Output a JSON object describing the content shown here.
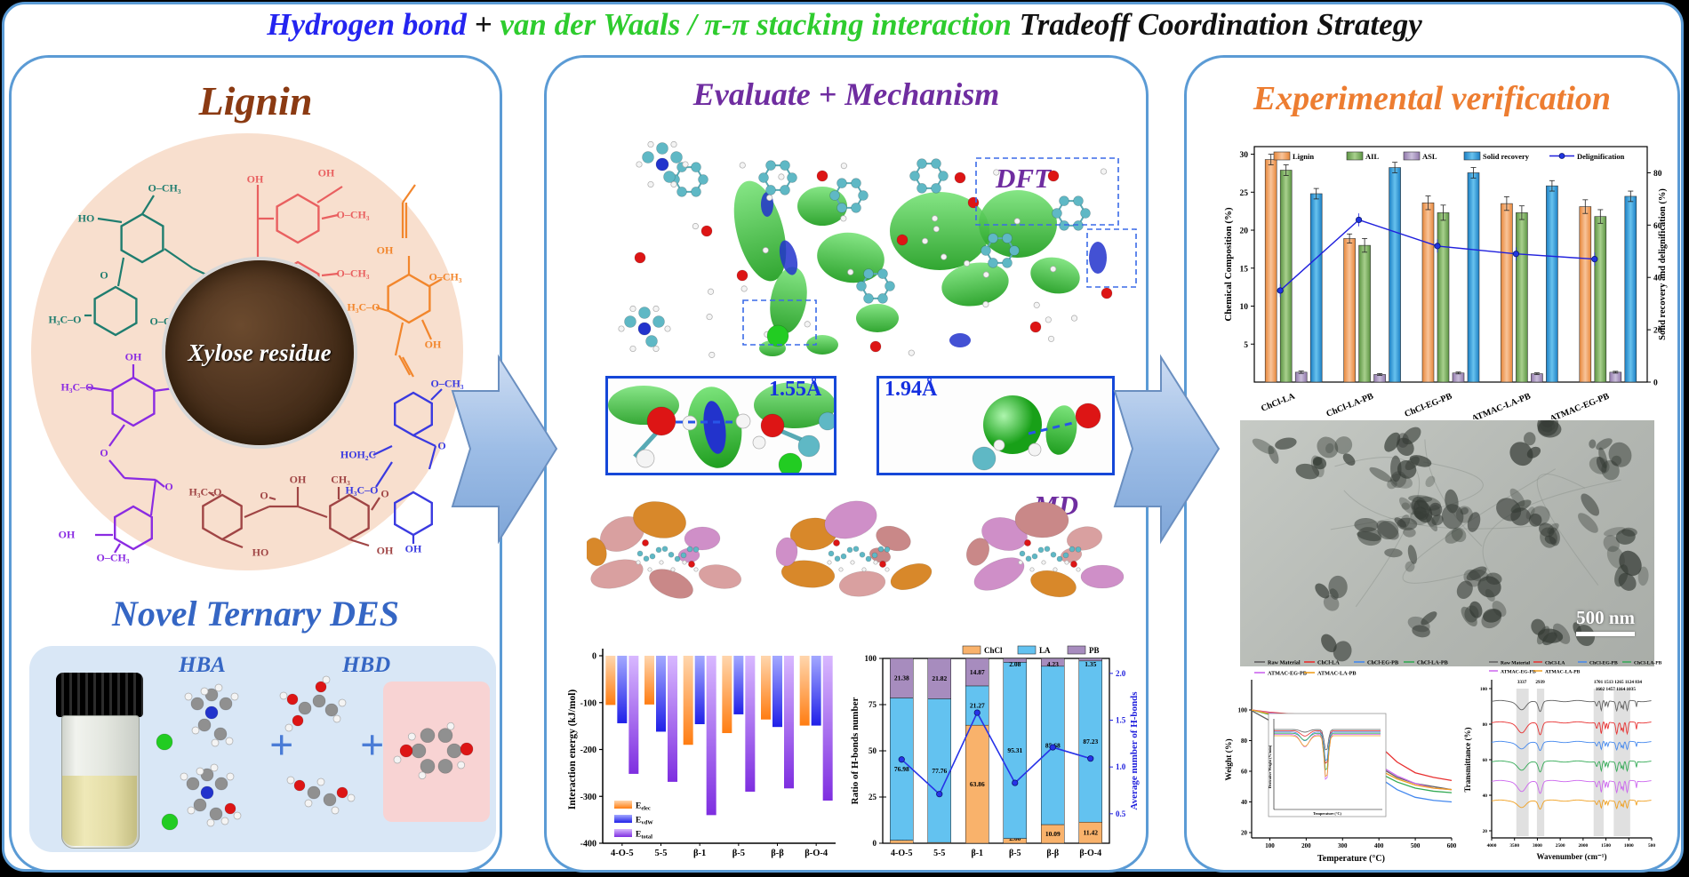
{
  "header": {
    "part_blue": "Hydrogen bond",
    "part_plus": " + ",
    "part_green": "van der Waals / π-π stacking interaction",
    "part_black": " Tradeoff Coordination Strategy"
  },
  "left_panel": {
    "title": "Lignin",
    "xylose_label": "Xylose residue",
    "des_title": "Novel Ternary DES",
    "hba_label": "HBA",
    "hbd_label": "HBD",
    "plus": "+",
    "structures": {
      "teal": [
        "O–CH₃",
        "HO",
        "O",
        "H₃C–O",
        "O–CH₃",
        "CH₂OH"
      ],
      "salmon": [
        "OH",
        "OH",
        "O–CH₃",
        "O–CH₃",
        "OH",
        "OH"
      ],
      "orange": [
        "OH",
        "H₃C–O",
        "O–CH₃",
        "OH"
      ],
      "purple": [
        "OH",
        "H₃C–O",
        "O–CH₃",
        "O",
        "O",
        "O–CH₃",
        "OH"
      ],
      "blue": [
        "O–CH₃",
        "HOH₂C",
        "H₃C–O",
        "O",
        "OH"
      ],
      "maroon": [
        "OH",
        "CH₃",
        "H₃C–O",
        "O",
        "O",
        "HO",
        "OH"
      ]
    }
  },
  "middle_panel": {
    "title": "Evaluate + Mechanism",
    "dft_label": "DFT",
    "md_label": "MD",
    "distance1": "1.55Å",
    "distance2": "1.94Å"
  },
  "right_panel": {
    "title": "Experimental verification",
    "tem_scale": "500 nm"
  },
  "chart_data": [
    {
      "id": "interaction_energy",
      "type": "bar",
      "ylabel": "Interaction energy (kJ/mol)",
      "ylim": [
        -400,
        0
      ],
      "yticks": [
        0,
        -100,
        -200,
        -300,
        -400
      ],
      "categories": [
        "4-O-5",
        "5-5",
        "β-1",
        "β-5",
        "β-β",
        "β-O-4"
      ],
      "series": [
        {
          "name_main": "E",
          "name_sub": "elec",
          "color_top": "#ffd6ad",
          "color_bottom": "#ff7d12",
          "values": [
            -105,
            -104,
            -190,
            -165,
            -136,
            -149
          ]
        },
        {
          "name_main": "E",
          "name_sub": "vdW",
          "color_top": "#a3a8ff",
          "color_bottom": "#2020e8",
          "values": [
            -144,
            -162,
            -146,
            -125,
            -152,
            -149
          ]
        },
        {
          "name_main": "E",
          "name_sub": "total",
          "color_top": "#d8b8ff",
          "color_bottom": "#7e2ee0",
          "values": [
            -252,
            -269,
            -340,
            -290,
            -283,
            -309
          ]
        }
      ],
      "legend_position": "bottom-left",
      "grid": false
    },
    {
      "id": "hbond_ratio",
      "type": "stacked-bar+line",
      "ylabel_left": "Ratio of H-bonds number",
      "ylabel_right": "Average number of H-bonds",
      "ylim_left": [
        0,
        100
      ],
      "yticks_left": [
        0,
        25,
        50,
        75,
        100
      ],
      "ylim_right": [
        0.185,
        2.16
      ],
      "yticks_right": [
        0.5,
        1.0,
        1.5,
        2.0
      ],
      "accent_right_axis": "#2020dd",
      "categories": [
        "4-O-5",
        "5-5",
        "β-1",
        "β-5",
        "β-β",
        "β-O-4"
      ],
      "series": [
        {
          "name": "ChCl",
          "color": "#f9b26b",
          "values": [
            1.64,
            0.41,
            63.86,
            2.6,
            10.09,
            11.42
          ]
        },
        {
          "name": "LA",
          "color": "#63c2f0",
          "values": [
            76.98,
            77.76,
            21.27,
            95.31,
            85.68,
            87.23
          ]
        },
        {
          "name": "PB",
          "color": "#a78cbe",
          "values": [
            21.38,
            21.82,
            14.87,
            2.08,
            4.23,
            1.35
          ]
        }
      ],
      "line": {
        "name": "Average number of H-bonds",
        "color": "#2733e8",
        "values": [
          1.08,
          0.71,
          1.58,
          0.83,
          1.21,
          1.09
        ]
      }
    },
    {
      "id": "composition",
      "type": "grouped-bar+line",
      "ylabel_left": "Chemical Composition (%)",
      "ylabel_right": "Solid recovery and delignification (%)",
      "ylim_left": [
        0,
        31
      ],
      "yticks_left": [
        5,
        10,
        15,
        20,
        25,
        30
      ],
      "ylim_right": [
        0,
        90
      ],
      "yticks_right": [
        0,
        20,
        40,
        60,
        80
      ],
      "categories": [
        "ChCl-LA",
        "ChCl-LA-PB",
        "ChCl-EG-PB",
        "ATMAC-LA-PB",
        "ATMAC-EG-PB"
      ],
      "series": [
        {
          "name": "Lignin",
          "axis": "left",
          "color1": "#e8873a",
          "color2": "#f8c49a",
          "values": [
            29.3,
            18.9,
            23.6,
            23.5,
            23.1
          ],
          "errors": [
            0.7,
            0.6,
            0.9,
            0.9,
            0.9
          ]
        },
        {
          "name": "AIL",
          "axis": "left",
          "color1": "#5c9443",
          "color2": "#a8d08d",
          "values": [
            27.9,
            18.0,
            22.3,
            22.3,
            21.8
          ],
          "errors": [
            0.7,
            0.9,
            1.0,
            0.9,
            0.9
          ]
        },
        {
          "name": "ASL",
          "axis": "left",
          "color1": "#9279ac",
          "color2": "#cabfdb",
          "values": [
            1.3,
            1.0,
            1.2,
            1.1,
            1.3
          ],
          "errors": [
            0.15,
            0.12,
            0.12,
            0.12,
            0.12
          ]
        },
        {
          "name": "Solid recovery",
          "axis": "right",
          "color1": "#1b7fc4",
          "color2": "#68c2ee",
          "values": [
            72,
            82,
            80,
            75,
            71
          ],
          "errors": [
            2,
            2,
            2,
            2,
            2
          ]
        }
      ],
      "line": {
        "name": "Delignification",
        "color": "#2020dd",
        "values": [
          35,
          62,
          52,
          49,
          47
        ],
        "errors": [
          2.5,
          2.5,
          2.5,
          2.5,
          2.5
        ]
      }
    },
    {
      "id": "tga",
      "type": "line",
      "ylabel": "Weight (%)",
      "xlabel": "Temperature (°C)",
      "xticks": [
        100,
        200,
        300,
        400,
        500,
        600
      ],
      "yticks": [
        20,
        40,
        60,
        80,
        100
      ],
      "x": [
        50,
        100,
        150,
        200,
        250,
        280,
        310,
        340,
        370,
        400,
        450,
        500,
        550,
        600
      ],
      "series": [
        {
          "name": "Raw Material",
          "color": "#606060",
          "values": [
            99.5,
            93,
            91,
            90.5,
            90,
            89.5,
            88,
            82,
            72,
            63,
            56,
            52,
            50,
            48
          ]
        },
        {
          "name": "ChCl-LA",
          "color": "#e83030",
          "values": [
            100,
            98.5,
            97.5,
            97,
            96.5,
            96,
            95,
            91,
            85,
            77,
            66,
            59,
            56,
            54
          ]
        },
        {
          "name": "ChCl-EG-PB",
          "color": "#4488ee",
          "values": [
            100,
            97.5,
            96.5,
            95.5,
            94,
            92,
            86,
            76,
            65,
            56,
            48,
            43,
            41,
            40
          ]
        },
        {
          "name": "ChCl-LA-PB",
          "color": "#33aa55",
          "values": [
            100,
            97,
            96,
            95,
            93.5,
            91,
            84,
            74,
            65,
            59,
            53,
            49,
            47,
            46
          ]
        },
        {
          "name": "ATMAC-EG-PB",
          "color": "#cc66ee",
          "values": [
            100,
            98,
            97,
            96,
            95,
            93.5,
            89,
            81,
            72,
            64,
            57,
            52,
            49,
            48
          ]
        },
        {
          "name": "ATMAC-LA-PB",
          "color": "#f0a020",
          "values": [
            100,
            97.5,
            96.5,
            95.5,
            94,
            91.5,
            85,
            75,
            67,
            61,
            55,
            51,
            49,
            48
          ]
        }
      ],
      "inset": {
        "ylabel": "Derivative Weight (%/min)",
        "xlabel": "Temperature (°C)"
      }
    },
    {
      "id": "ftir",
      "type": "line",
      "ylabel": "Transmittance (%)",
      "xlabel": "Wavenumber (cm⁻¹)",
      "xticks": [
        4000,
        3500,
        3000,
        2500,
        2000,
        1500,
        1000,
        500
      ],
      "yticks": [
        20,
        40,
        60,
        80,
        100
      ],
      "series": [
        {
          "name": "Raw Material",
          "color": "#606060"
        },
        {
          "name": "ChCl-LA",
          "color": "#e83030"
        },
        {
          "name": "ChCl-EG-PB",
          "color": "#4488ee"
        },
        {
          "name": "ChCl-LA-PB",
          "color": "#33aa55"
        },
        {
          "name": "ATMAC-EG-PB",
          "color": "#cc66ee"
        },
        {
          "name": "ATMAC-LA-PB",
          "color": "#f0a020"
        }
      ],
      "peaks": [
        3337,
        2939,
        1701,
        1602,
        1513,
        1457,
        1265,
        1164,
        1124,
        1035,
        834
      ],
      "bands": [
        [
          3460,
          3190
        ],
        [
          3010,
          2850
        ],
        [
          1770,
          1550
        ],
        [
          1330,
          970
        ]
      ],
      "ann1": "3337",
      "ann2": "2939",
      "ann3": "1701 1513 1265 1124 834",
      "ann4": "1602 1457 1164 1035"
    }
  ]
}
